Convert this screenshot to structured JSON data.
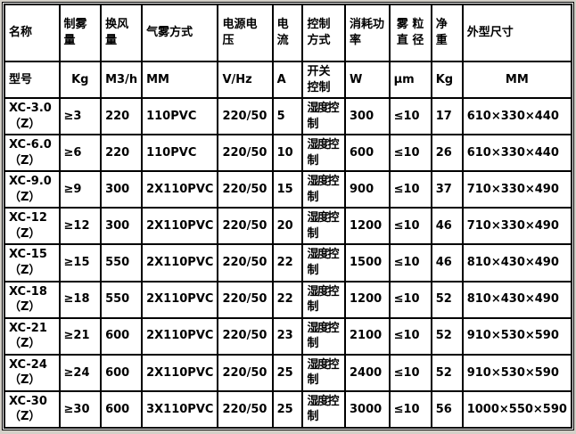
{
  "colors": {
    "page_bg": "#d4d0c8",
    "grid_border": "#000000",
    "cell_bg": "#ffffff",
    "text": "#000000"
  },
  "table": {
    "header_row1": [
      "名称",
      "制雾量",
      "换风量",
      "气雾方式",
      "电源电压",
      "电流",
      "控制方式",
      "消耗功\n率",
      "雾 粒\n直 径",
      "净重",
      "外型尺寸"
    ],
    "header_row2": [
      "型号",
      "Kg",
      "M3/h",
      "MM",
      "V/Hz",
      "A",
      "开关控制",
      "W",
      "μm",
      "Kg",
      "MM"
    ],
    "rows": [
      [
        "XC-3.0（Z）",
        "≥3",
        "220",
        "110PVC",
        "220/50",
        "5",
        "湿度控制",
        "300",
        "≤10",
        "17",
        "610×330×440"
      ],
      [
        "XC-6.0（Z）",
        "≥6",
        "220",
        "110PVC",
        "220/50",
        "10",
        "湿度控制",
        "600",
        "≤10",
        "26",
        "610×330×440"
      ],
      [
        "XC-9.0（Z）",
        "≥9",
        "300",
        "2X110PVC",
        "220/50",
        "15",
        "湿度控制",
        "900",
        "≤10",
        "37",
        "710×330×490"
      ],
      [
        "XC-12（Z）",
        "≥12",
        "300",
        "2X110PVC",
        "220/50",
        "20",
        "湿度控制",
        "1200",
        "≤10",
        "46",
        "710×330×490"
      ],
      [
        "XC-15（Z）",
        "≥15",
        "550",
        "2X110PVC",
        "220/50",
        "22",
        "湿度控制",
        "1500",
        "≤10",
        "46",
        "810×430×490"
      ],
      [
        "XC-18（Z）",
        "≥18",
        "550",
        "2X110PVC",
        "220/50",
        "22",
        "湿度控制",
        "1200",
        "≤10",
        "52",
        "810×430×490"
      ],
      [
        "XC-21（Z）",
        "≥21",
        "600",
        "2X110PVC",
        "220/50",
        "23",
        "湿度控制",
        "2100",
        "≤10",
        "52",
        "910×530×590"
      ],
      [
        "XC-24（Z）",
        "≥24",
        "600",
        "2X110PVC",
        "220/50",
        "25",
        "湿度控制",
        "2400",
        "≤10",
        "52",
        "910×530×590"
      ],
      [
        "XC-30（Z）",
        "≥30",
        "600",
        "3X110PVC",
        "220/50",
        "25",
        "湿度控制",
        "3000",
        "≤10",
        "56",
        "1000×550×590"
      ]
    ]
  }
}
